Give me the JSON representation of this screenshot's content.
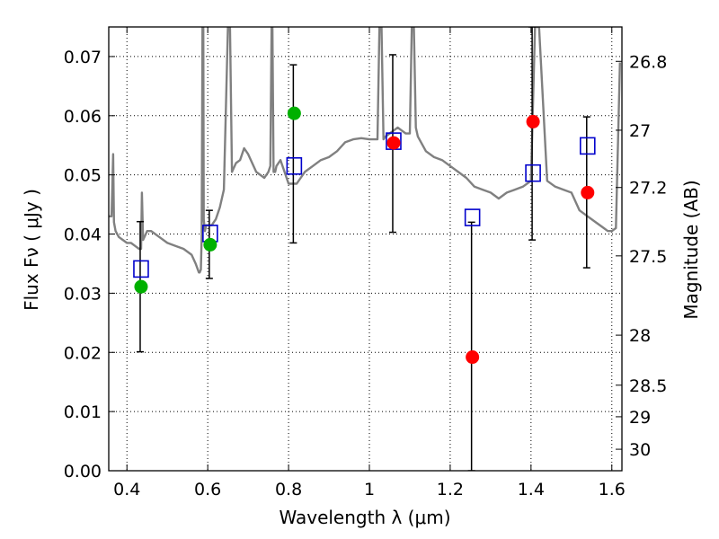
{
  "chart_data": {
    "type": "scatter",
    "title": "",
    "xlabel": "Wavelength  λ (μm)",
    "ylabel": "Flux  Fν  ( μJy )",
    "y2label": "Magnitude (AB)",
    "xlim": [
      0.355,
      1.625
    ],
    "ylim": [
      0.0,
      0.075
    ],
    "grid": true,
    "xticks": [
      0.4,
      0.6,
      0.8,
      1.0,
      1.2,
      1.4,
      1.6
    ],
    "xtick_labels": [
      "0.4",
      "0.6",
      "0.8",
      "1",
      "1.2",
      "1.4",
      "1.6"
    ],
    "yticks": [
      0.0,
      0.01,
      0.02,
      0.03,
      0.04,
      0.05,
      0.06,
      0.07
    ],
    "ytick_labels": [
      "0.00",
      "0.01",
      "0.02",
      "0.03",
      "0.04",
      "0.05",
      "0.06",
      "0.07"
    ],
    "y2ticks": [
      {
        "label": "26.8",
        "mag": 26.8
      },
      {
        "label": "27",
        "mag": 27.0
      },
      {
        "label": "27.2",
        "mag": 27.2
      },
      {
        "label": "27.5",
        "mag": 27.5
      },
      {
        "label": "28",
        "mag": 28.0
      },
      {
        "label": "28.5",
        "mag": 28.5
      },
      {
        "label": "29",
        "mag": 29.0
      },
      {
        "label": "30",
        "mag": 30.0
      }
    ],
    "colors": {
      "model": "#808080",
      "green_points": "#00b000",
      "red_points": "#ff0000",
      "model_flux": "#0000cc",
      "errorbar": "#000000"
    },
    "series": [
      {
        "marker": "square",
        "x": [
          0.435,
          0.606,
          0.814,
          1.06,
          1.255,
          1.405,
          1.54
        ],
        "y": [
          0.0341,
          0.0401,
          0.0515,
          0.0557,
          0.0428,
          0.0503,
          0.0549
        ]
      },
      {
        "marker": "circle-green",
        "x": [
          0.435,
          0.606,
          0.814
        ],
        "y": [
          0.0311,
          0.0382,
          0.0604
        ],
        "yerr_low": [
          0.0201,
          0.0325,
          0.0385
        ],
        "yerr_high": [
          0.0421,
          0.044,
          0.0686
        ]
      },
      {
        "marker": "circle-red",
        "x": [
          1.06,
          1.255,
          1.405,
          1.54
        ],
        "y": [
          0.0554,
          0.0192,
          0.059,
          0.047
        ],
        "yerr_low": [
          0.0403,
          0.0,
          0.039,
          0.0343
        ],
        "yerr_high": [
          0.0703,
          0.042,
          0.075,
          0.0598
        ]
      },
      {
        "marker": "line",
        "x": [
          0.355,
          0.362,
          0.366,
          0.368,
          0.372,
          0.38,
          0.39,
          0.4,
          0.41,
          0.42,
          0.43,
          0.435,
          0.437,
          0.44,
          0.45,
          0.46,
          0.47,
          0.48,
          0.5,
          0.52,
          0.54,
          0.56,
          0.57,
          0.578,
          0.58,
          0.583,
          0.585,
          0.587,
          0.589,
          0.59,
          0.593,
          0.596,
          0.6,
          0.61,
          0.62,
          0.63,
          0.64,
          0.65,
          0.655,
          0.66,
          0.67,
          0.68,
          0.69,
          0.7,
          0.72,
          0.74,
          0.75,
          0.755,
          0.758,
          0.76,
          0.763,
          0.767,
          0.77,
          0.78,
          0.79,
          0.8,
          0.81,
          0.82,
          0.83,
          0.84,
          0.86,
          0.88,
          0.9,
          0.92,
          0.94,
          0.96,
          0.98,
          1.0,
          1.02,
          1.025,
          1.03,
          1.035,
          1.04,
          1.05,
          1.06,
          1.07,
          1.08,
          1.09,
          1.1,
          1.105,
          1.11,
          1.115,
          1.12,
          1.14,
          1.16,
          1.18,
          1.2,
          1.22,
          1.24,
          1.26,
          1.28,
          1.3,
          1.32,
          1.34,
          1.36,
          1.38,
          1.4,
          1.41,
          1.42,
          1.44,
          1.46,
          1.48,
          1.5,
          1.52,
          1.54,
          1.56,
          1.58,
          1.59,
          1.6,
          1.61,
          1.62
        ],
        "y": [
          0.043,
          0.043,
          0.0535,
          0.042,
          0.0405,
          0.0395,
          0.039,
          0.0385,
          0.0385,
          0.038,
          0.0375,
          0.0375,
          0.047,
          0.039,
          0.0405,
          0.0405,
          0.04,
          0.0395,
          0.0385,
          0.038,
          0.0375,
          0.0365,
          0.035,
          0.0335,
          0.0335,
          0.034,
          0.0395,
          0.075,
          0.075,
          0.0425,
          0.0405,
          0.0415,
          0.0415,
          0.0415,
          0.0425,
          0.0445,
          0.0475,
          0.075,
          0.075,
          0.0505,
          0.052,
          0.0525,
          0.0545,
          0.0535,
          0.0505,
          0.0495,
          0.0505,
          0.0515,
          0.075,
          0.075,
          0.0505,
          0.0505,
          0.0515,
          0.0525,
          0.0505,
          0.0485,
          0.0485,
          0.0485,
          0.0495,
          0.0505,
          0.0515,
          0.0525,
          0.053,
          0.054,
          0.0555,
          0.056,
          0.0562,
          0.056,
          0.056,
          0.075,
          0.075,
          0.056,
          0.0565,
          0.057,
          0.0575,
          0.058,
          0.0575,
          0.057,
          0.057,
          0.075,
          0.075,
          0.058,
          0.0565,
          0.054,
          0.053,
          0.0525,
          0.0515,
          0.0505,
          0.0495,
          0.048,
          0.0475,
          0.047,
          0.046,
          0.047,
          0.0475,
          0.048,
          0.049,
          0.075,
          0.075,
          0.049,
          0.048,
          0.0475,
          0.047,
          0.044,
          0.043,
          0.042,
          0.041,
          0.0405,
          0.0405,
          0.041,
          0.069
        ]
      }
    ]
  }
}
